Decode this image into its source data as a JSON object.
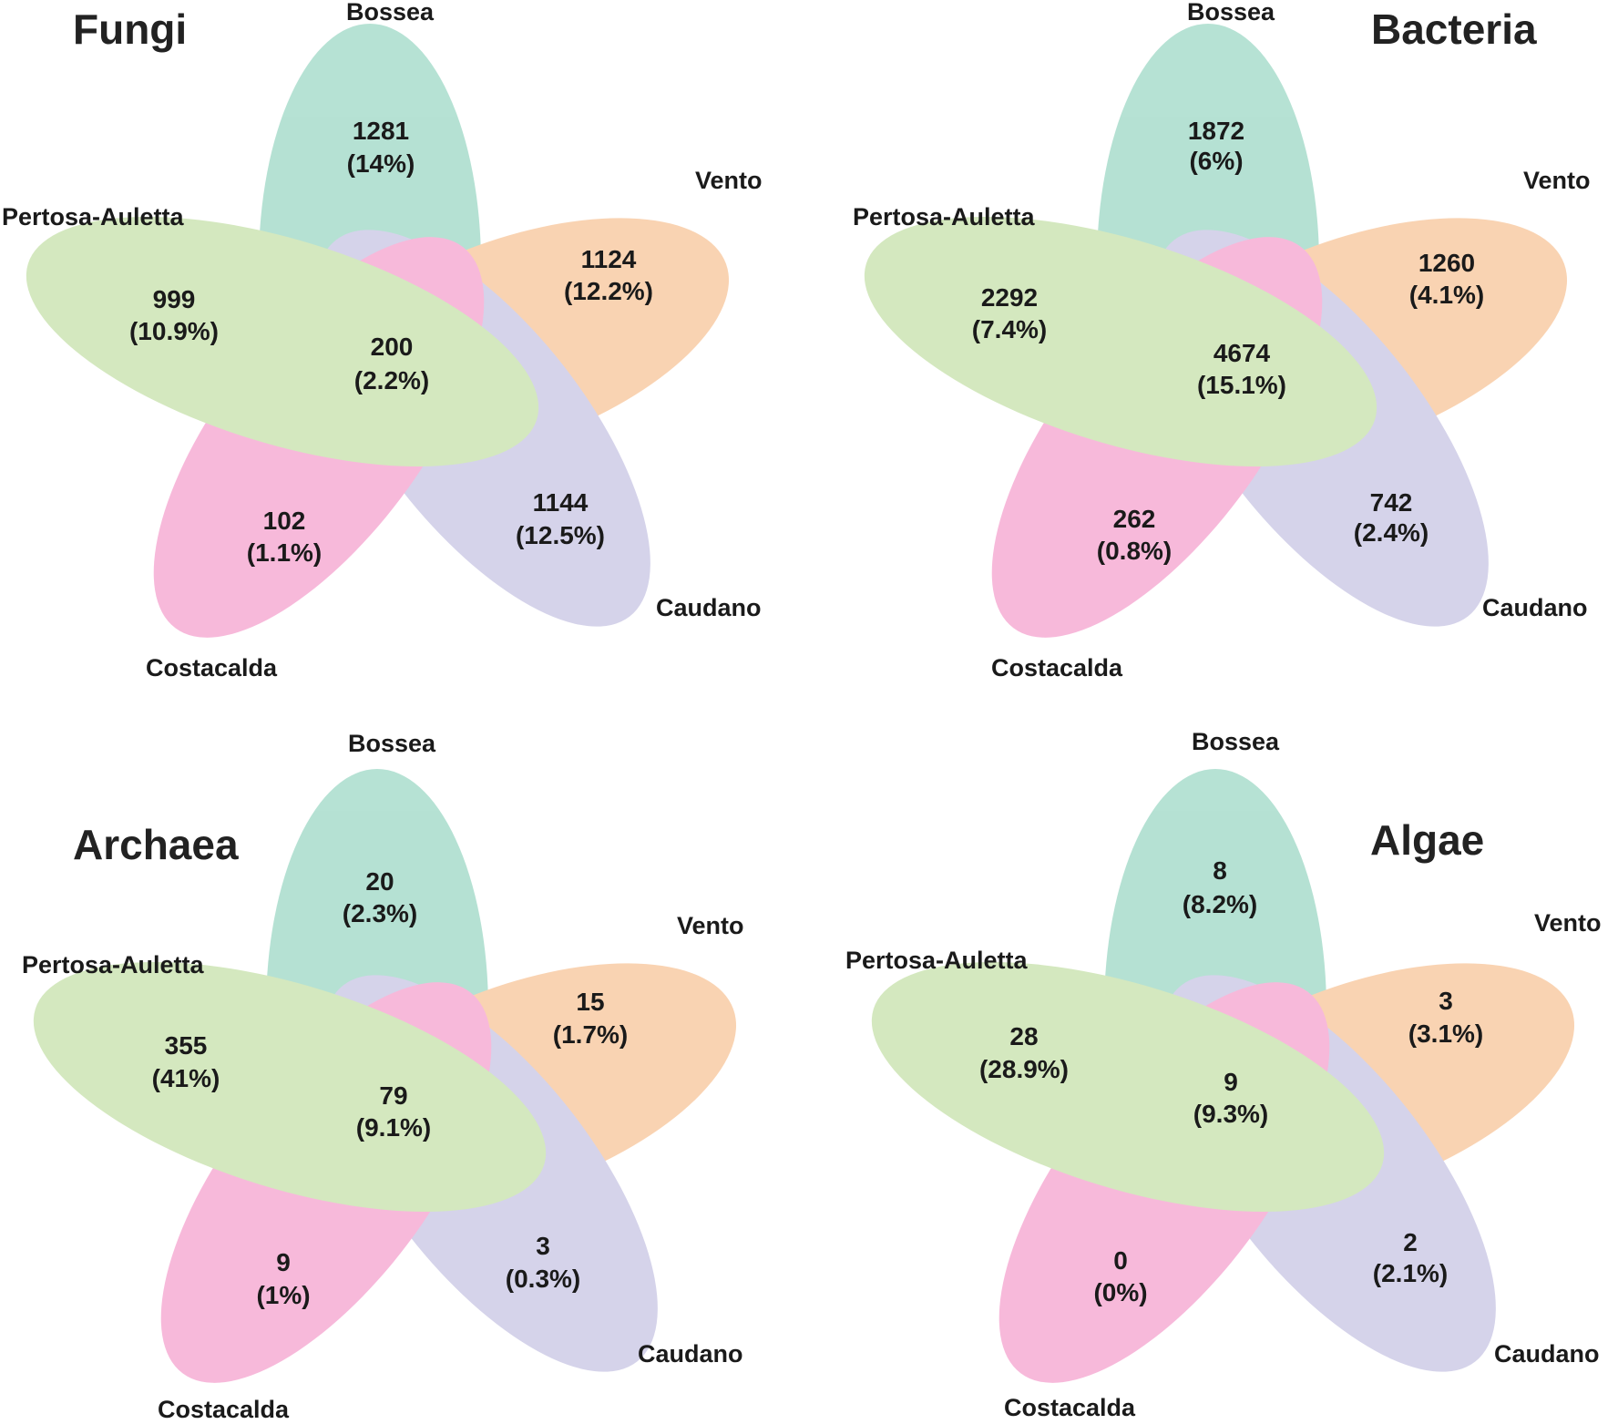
{
  "colors": {
    "Bossea": "#66c2a5",
    "Vento": "#f4a460",
    "Caudano": "#a8a4d4",
    "Costacalda": "#ef6fb4",
    "Pertosa-Auletta": "#a6d07a"
  },
  "chart_data": [
    {
      "type": "venn",
      "title": "Fungi",
      "sets": [
        "Bossea",
        "Vento",
        "Caudano",
        "Costacalda",
        "Pertosa-Auletta"
      ],
      "regions": [
        {
          "region": "Bossea",
          "count": "1281",
          "percent": "(14%)"
        },
        {
          "region": "Vento",
          "count": "1124",
          "percent": "(12.2%)"
        },
        {
          "region": "Caudano",
          "count": "1144",
          "percent": "(12.5%)"
        },
        {
          "region": "Costacalda",
          "count": "102",
          "percent": "(1.1%)"
        },
        {
          "region": "Pertosa-Auletta",
          "count": "999",
          "percent": "(10.9%)"
        },
        {
          "region": "All",
          "count": "200",
          "percent": "(2.2%)"
        }
      ]
    },
    {
      "type": "venn",
      "title": "Bacteria",
      "sets": [
        "Bossea",
        "Vento",
        "Caudano",
        "Costacalda",
        "Pertosa-Auletta"
      ],
      "regions": [
        {
          "region": "Bossea",
          "count": "1872",
          "percent": "(6%)"
        },
        {
          "region": "Vento",
          "count": "1260",
          "percent": "(4.1%)"
        },
        {
          "region": "Caudano",
          "count": "742",
          "percent": "(2.4%)"
        },
        {
          "region": "Costacalda",
          "count": "262",
          "percent": "(0.8%)"
        },
        {
          "region": "Pertosa-Auletta",
          "count": "2292",
          "percent": "(7.4%)"
        },
        {
          "region": "All",
          "count": "4674",
          "percent": "(15.1%)"
        }
      ]
    },
    {
      "type": "venn",
      "title": "Archaea",
      "sets": [
        "Bossea",
        "Vento",
        "Caudano",
        "Costacalda",
        "Pertosa-Auletta"
      ],
      "regions": [
        {
          "region": "Bossea",
          "count": "20",
          "percent": "(2.3%)"
        },
        {
          "region": "Vento",
          "count": "15",
          "percent": "(1.7%)"
        },
        {
          "region": "Caudano",
          "count": "3",
          "percent": "(0.3%)"
        },
        {
          "region": "Costacalda",
          "count": "9",
          "percent": "(1%)"
        },
        {
          "region": "Pertosa-Auletta",
          "count": "355",
          "percent": "(41%)"
        },
        {
          "region": "All",
          "count": "79",
          "percent": "(9.1%)"
        }
      ]
    },
    {
      "type": "venn",
      "title": "Algae",
      "sets": [
        "Bossea",
        "Vento",
        "Caudano",
        "Costacalda",
        "Pertosa-Auletta"
      ],
      "regions": [
        {
          "region": "Bossea",
          "count": "8",
          "percent": "(8.2%)"
        },
        {
          "region": "Vento",
          "count": "3",
          "percent": "(3.1%)"
        },
        {
          "region": "Caudano",
          "count": "2",
          "percent": "(2.1%)"
        },
        {
          "region": "Costacalda",
          "count": "0",
          "percent": "(0%)"
        },
        {
          "region": "Pertosa-Auletta",
          "count": "28",
          "percent": "(28.9%)"
        },
        {
          "region": "All",
          "count": "9",
          "percent": "(9.3%)"
        }
      ]
    }
  ]
}
